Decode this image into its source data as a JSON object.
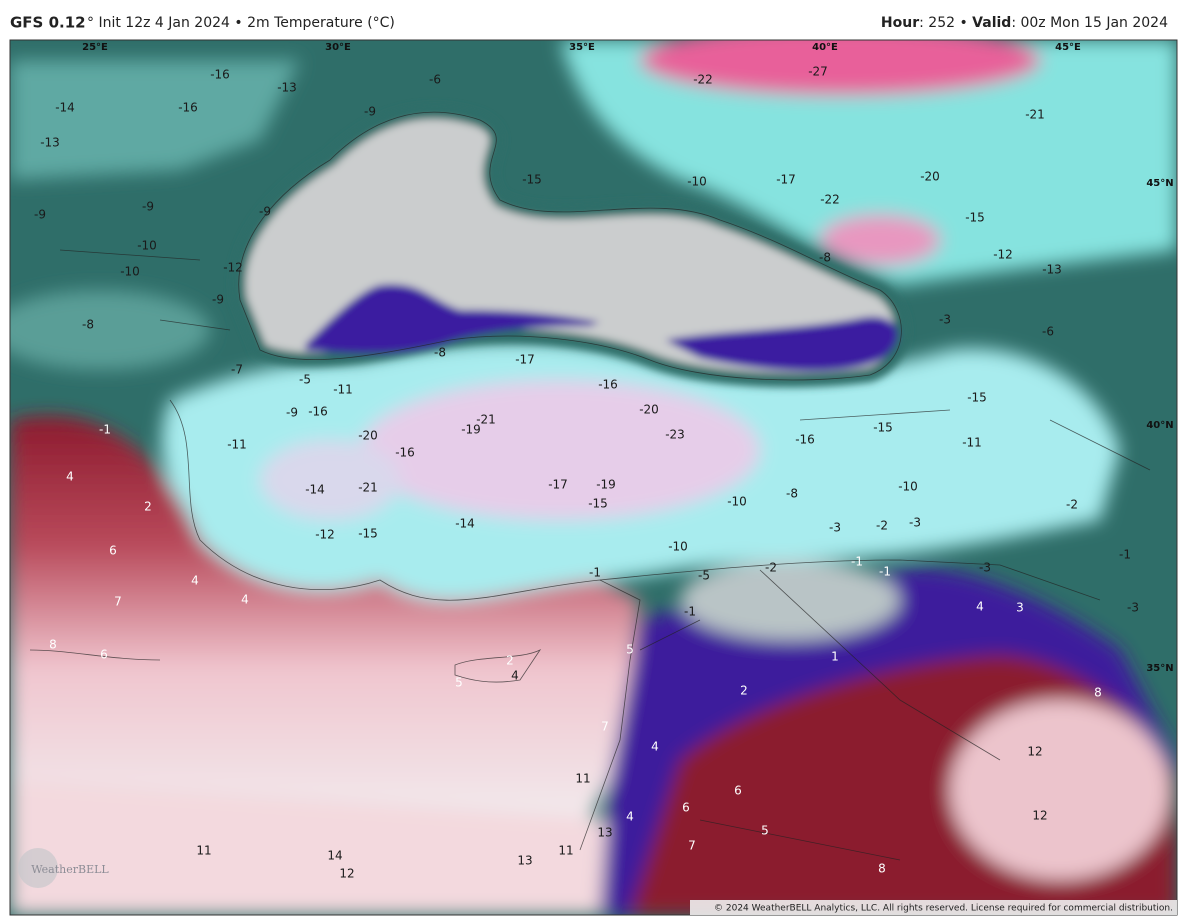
{
  "header": {
    "model": "GFS 0.12",
    "left_text": "° Init 12z 4 Jan 2024 • 2m Temperature (°C)",
    "hour_label": "Hour",
    "hour_text": ": 252 • ",
    "valid_label": "Valid",
    "valid_text": ": 00z Mon 15 Jan 2024"
  },
  "longitude_labels": [
    "25°E",
    "30°E",
    "35°E",
    "40°E",
    "45°E"
  ],
  "latitude_labels": [
    "45°N",
    "40°N",
    "35°N"
  ],
  "temperature_labels": [
    -16,
    -14,
    -16,
    -13,
    -13,
    -6,
    -22,
    -27,
    -21,
    -9,
    -15,
    -10,
    -17,
    -22,
    -20,
    -15,
    -9,
    -9,
    -9,
    -10,
    -10,
    -12,
    -9,
    -8,
    -12,
    -13,
    -8,
    -3,
    -6,
    -8,
    -17,
    -7,
    -5,
    -11,
    -16,
    -20,
    -21,
    -19,
    -20,
    -23,
    -16,
    -15,
    -15,
    -11,
    -16,
    -9,
    -16,
    -1,
    -11,
    -14,
    -21,
    -17,
    -19,
    -15,
    -14,
    -12,
    -15,
    -10,
    -8,
    -10,
    -10,
    -3,
    -2,
    -3,
    -1,
    -2,
    -5,
    -1,
    -1,
    -3,
    -2,
    -1,
    -3,
    -1,
    4,
    2,
    6,
    4,
    7,
    4,
    8,
    6,
    2,
    4,
    5,
    5,
    1,
    2,
    4,
    3,
    8,
    7,
    4,
    11,
    6,
    6,
    4,
    5,
    7,
    13,
    12,
    12,
    11,
    14,
    12,
    13,
    11,
    8
  ],
  "logo": "WeatherBELL",
  "copyright": "© 2024 WeatherBELL Analytics, LLC. All rights reserved. License required for commercial distribution."
}
